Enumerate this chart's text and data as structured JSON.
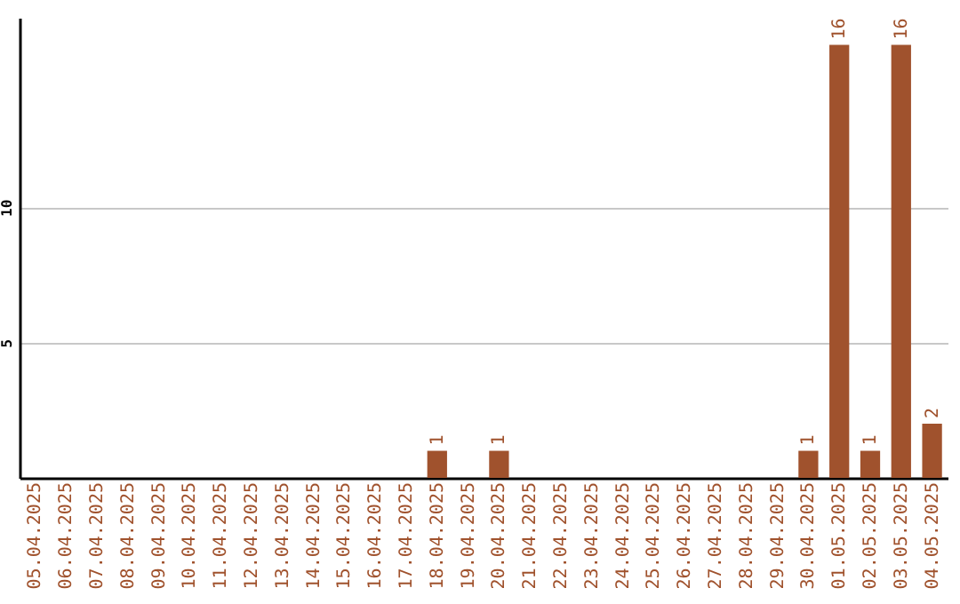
{
  "chart_data": {
    "type": "bar",
    "categories": [
      "05.04.2025",
      "06.04.2025",
      "07.04.2025",
      "08.04.2025",
      "09.04.2025",
      "10.04.2025",
      "11.04.2025",
      "12.04.2025",
      "13.04.2025",
      "14.04.2025",
      "15.04.2025",
      "16.04.2025",
      "17.04.2025",
      "18.04.2025",
      "19.04.2025",
      "20.04.2025",
      "21.04.2025",
      "22.04.2025",
      "23.04.2025",
      "24.04.2025",
      "25.04.2025",
      "26.04.2025",
      "27.04.2025",
      "28.04.2025",
      "29.04.2025",
      "30.04.2025",
      "01.05.2025",
      "02.05.2025",
      "03.05.2025",
      "04.05.2025"
    ],
    "values": [
      0,
      0,
      0,
      0,
      0,
      0,
      0,
      0,
      0,
      0,
      0,
      0,
      0,
      1,
      0,
      1,
      0,
      0,
      0,
      0,
      0,
      0,
      0,
      0,
      0,
      1,
      16,
      1,
      16,
      2
    ],
    "value_labels": [
      null,
      null,
      null,
      null,
      null,
      null,
      null,
      null,
      null,
      null,
      null,
      null,
      null,
      "1",
      null,
      "1",
      null,
      null,
      null,
      null,
      null,
      null,
      null,
      null,
      null,
      "1",
      "16",
      "1",
      "16",
      "2"
    ],
    "color": "#a0522d",
    "ylim": [
      0,
      17
    ],
    "yticks": [
      5,
      10
    ],
    "grid": "y"
  }
}
